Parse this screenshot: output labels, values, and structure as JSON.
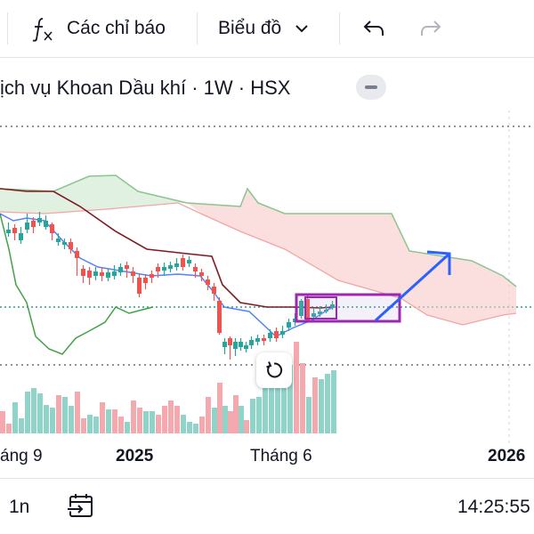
{
  "toolbar": {
    "indicators_icon": "fx-icon",
    "indicators_label": "Các chỉ báo",
    "chart_type_label": "Biểu đồ",
    "undo_icon": "undo-icon",
    "redo_icon": "redo-icon"
  },
  "header": {
    "title": "ịch vụ Khoan Dầu khí · 1W · HSX"
  },
  "chart": {
    "x_ticks": [
      "áng 9",
      "2025",
      "Tháng 6",
      "2026"
    ],
    "colors": {
      "up": "#26a69a",
      "down": "#ef5350",
      "tenkan": "#2962ff",
      "kijun": "#801922",
      "lagging": "#43a047",
      "cloud_red": "#f8c9c9",
      "cloud_green": "#c8e6c9",
      "annotation_box": "#9c27b0",
      "annotation_arrow": "#2962ff",
      "volume_up": "#8fd3c9",
      "volume_down": "#f4a9ae"
    }
  },
  "bottom": {
    "interval_label": "1n",
    "date_range_icon": "date-range-icon",
    "time": "14:25:55"
  }
}
